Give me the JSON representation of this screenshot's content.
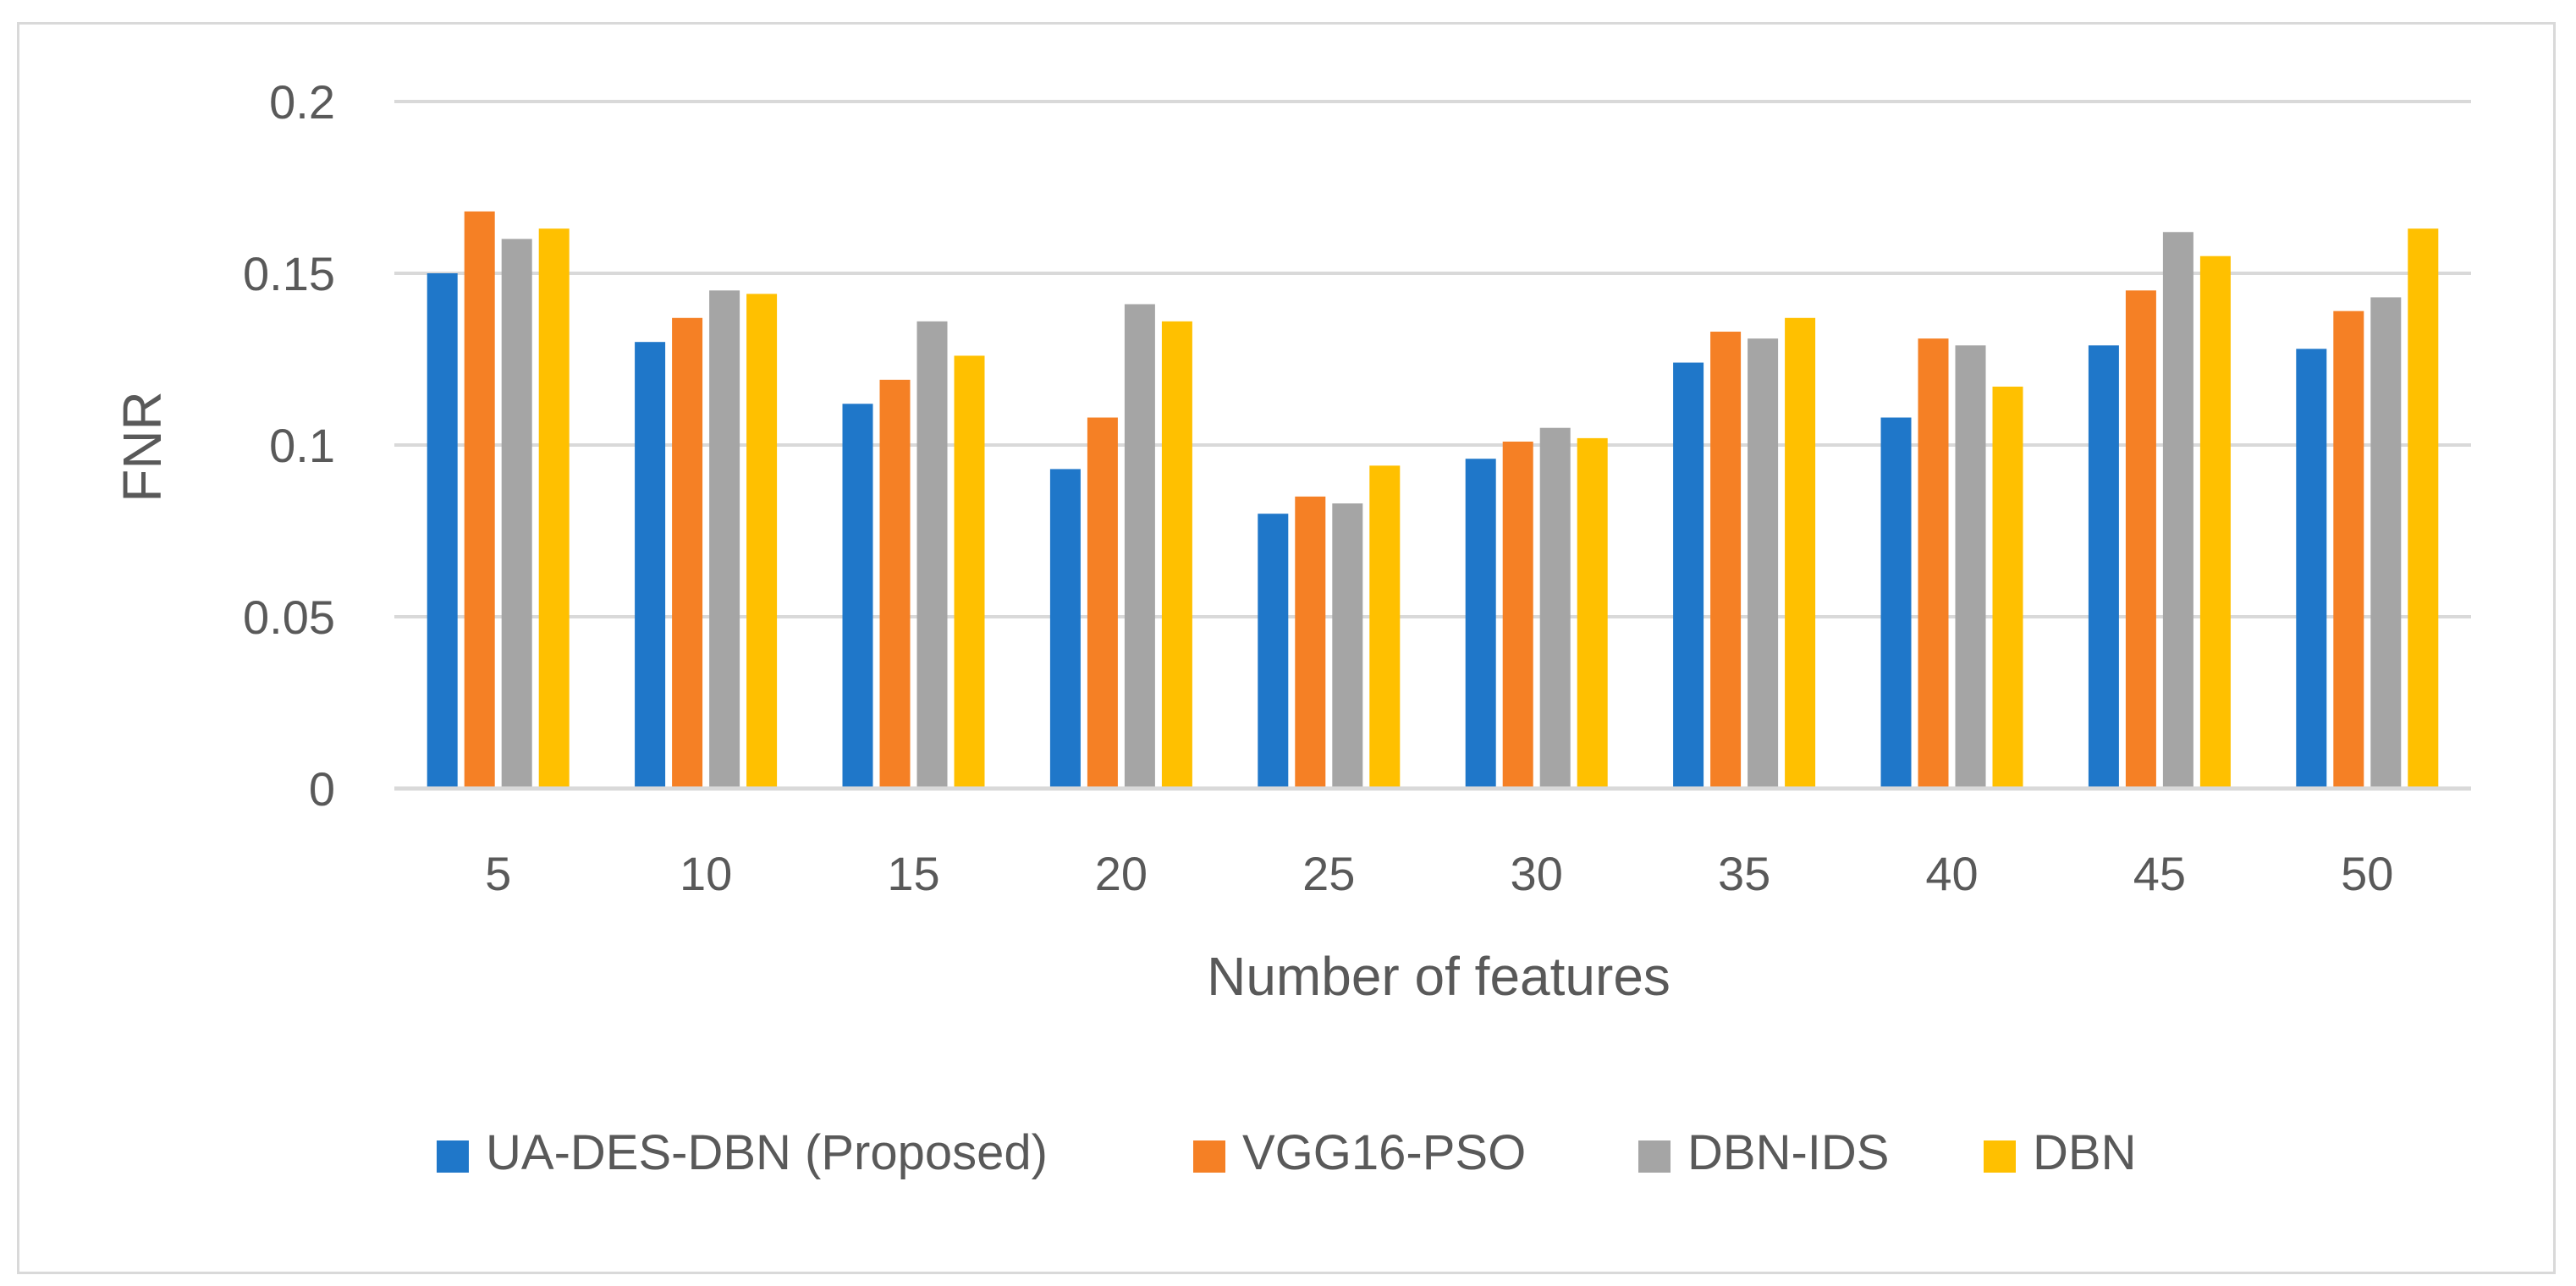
{
  "chart_data": {
    "type": "bar",
    "title": "",
    "xlabel": "Number of features",
    "ylabel": "FNR",
    "ylim": [
      0,
      0.2
    ],
    "yticks": [
      "0",
      "0.05",
      "0.1",
      "0.15",
      "0.2"
    ],
    "ytick_values": [
      0,
      0.05,
      0.1,
      0.15,
      0.2
    ],
    "grid": true,
    "legend_position": "bottom",
    "categories": [
      "5",
      "10",
      "15",
      "20",
      "25",
      "30",
      "35",
      "40",
      "45",
      "50"
    ],
    "series": [
      {
        "name": "UA-DES-DBN (Proposed)",
        "color": "#1f77c9",
        "values": [
          0.15,
          0.13,
          0.112,
          0.093,
          0.08,
          0.096,
          0.124,
          0.108,
          0.129,
          0.128
        ]
      },
      {
        "name": "VGG16-PSO",
        "color": "#f58025",
        "values": [
          0.168,
          0.137,
          0.119,
          0.108,
          0.085,
          0.101,
          0.133,
          0.131,
          0.145,
          0.139
        ]
      },
      {
        "name": "DBN-IDS",
        "color": "#a5a5a5",
        "values": [
          0.16,
          0.145,
          0.136,
          0.141,
          0.083,
          0.105,
          0.131,
          0.129,
          0.162,
          0.143
        ]
      },
      {
        "name": "DBN",
        "color": "#ffc000",
        "values": [
          0.163,
          0.144,
          0.126,
          0.136,
          0.094,
          0.102,
          0.137,
          0.117,
          0.155,
          0.163
        ]
      }
    ]
  }
}
